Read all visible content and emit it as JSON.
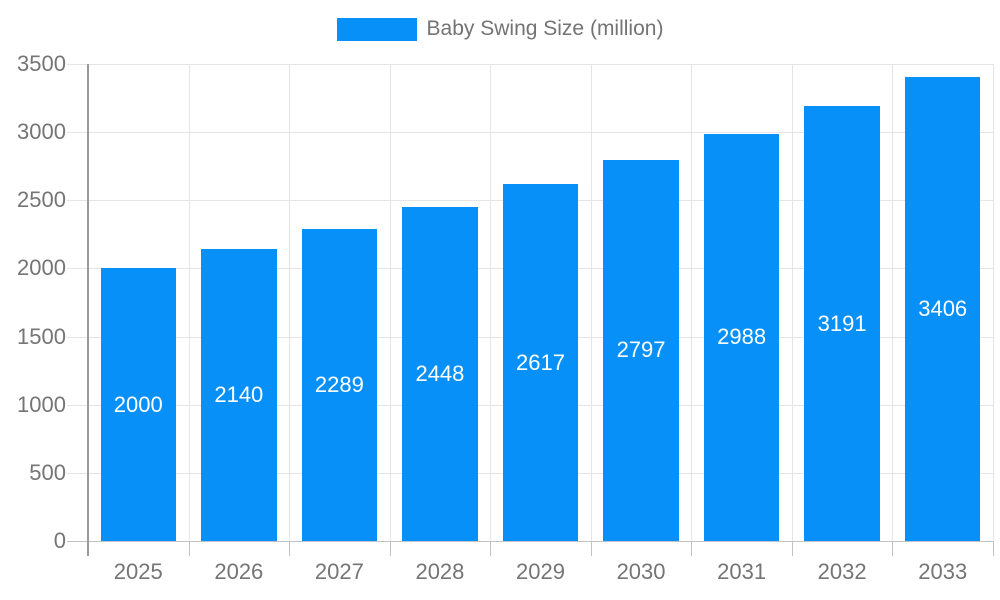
{
  "chart_data": {
    "type": "bar",
    "title": "Baby Swing Size (million)",
    "legend": {
      "label": "Baby Swing Size (million)",
      "position": "top"
    },
    "categories": [
      "2025",
      "2026",
      "2027",
      "2028",
      "2029",
      "2030",
      "2031",
      "2032",
      "2033"
    ],
    "series": [
      {
        "name": "Baby Swing Size (million)",
        "values": [
          2000,
          2140,
          2289,
          2448,
          2617,
          2797,
          2988,
          3191,
          3406
        ]
      }
    ],
    "value_labels_visible": true,
    "xlabel": "",
    "ylabel": "",
    "ylim": [
      0,
      3500
    ],
    "ytick_step": 500,
    "yticks": [
      "0",
      "500",
      "1000",
      "1500",
      "2000",
      "2500",
      "3000",
      "3500"
    ],
    "grid": true,
    "colors": {
      "bar": "#0790F8",
      "value_label": "#ffffff",
      "axis_text": "#757575",
      "legend_text": "#737373",
      "gridline": "#e5e5e5",
      "baseline": "#c2c2c2",
      "axis_line": "#999999"
    }
  }
}
